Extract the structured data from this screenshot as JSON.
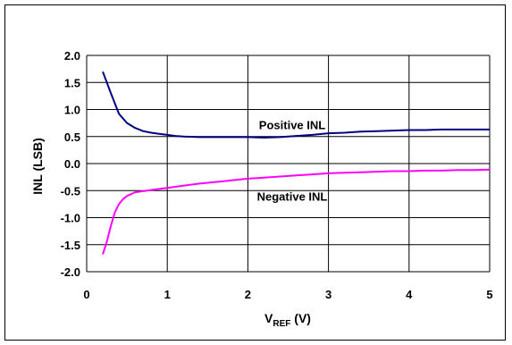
{
  "chart_data": {
    "type": "line",
    "title": "",
    "xlabel_main": "V",
    "xlabel_sub": "REF",
    "xlabel_unit": " (V)",
    "ylabel": "INL (LSB)",
    "xlim": [
      0,
      5
    ],
    "ylim": [
      -2.0,
      2.0
    ],
    "x_ticks": [
      "0",
      "1",
      "2",
      "3",
      "4",
      "5"
    ],
    "y_ticks": [
      "2.0",
      "1.5",
      "1.0",
      "0.5",
      "0.0",
      "-0.5",
      "-1.0",
      "-1.5",
      "-2.0"
    ],
    "grid": true,
    "series": [
      {
        "name": "Positive INL",
        "color": "#000080",
        "x": [
          0.2,
          0.3,
          0.4,
          0.5,
          0.6,
          0.7,
          0.8,
          0.9,
          1.0,
          1.1,
          1.2,
          1.4,
          1.6,
          1.8,
          2.0,
          2.2,
          2.4,
          2.6,
          2.8,
          3.0,
          3.2,
          3.4,
          3.6,
          3.8,
          4.0,
          4.2,
          4.4,
          4.6,
          4.8,
          5.0
        ],
        "values": [
          1.7,
          1.3,
          0.92,
          0.75,
          0.66,
          0.6,
          0.57,
          0.55,
          0.53,
          0.51,
          0.5,
          0.49,
          0.49,
          0.49,
          0.49,
          0.48,
          0.49,
          0.51,
          0.53,
          0.56,
          0.57,
          0.59,
          0.6,
          0.61,
          0.62,
          0.62,
          0.63,
          0.63,
          0.63,
          0.63
        ]
      },
      {
        "name": "Negative INL",
        "color": "#ff00ff",
        "x": [
          0.2,
          0.25,
          0.3,
          0.35,
          0.4,
          0.45,
          0.5,
          0.6,
          0.7,
          0.8,
          0.9,
          1.0,
          1.2,
          1.4,
          1.6,
          1.8,
          2.0,
          2.2,
          2.4,
          2.6,
          2.8,
          3.0,
          3.2,
          3.4,
          3.6,
          3.8,
          4.0,
          4.2,
          4.4,
          4.6,
          4.8,
          5.0
        ],
        "values": [
          -1.68,
          -1.45,
          -1.15,
          -0.9,
          -0.75,
          -0.66,
          -0.6,
          -0.53,
          -0.51,
          -0.49,
          -0.47,
          -0.45,
          -0.41,
          -0.37,
          -0.34,
          -0.31,
          -0.28,
          -0.26,
          -0.24,
          -0.22,
          -0.2,
          -0.18,
          -0.17,
          -0.16,
          -0.15,
          -0.14,
          -0.14,
          -0.13,
          -0.13,
          -0.12,
          -0.12,
          -0.11
        ]
      }
    ],
    "annotations": [
      {
        "text": "Positive INL",
        "x": 2.55,
        "y": 0.72
      },
      {
        "text": "Negative INL",
        "x": 2.55,
        "y": -0.6
      }
    ]
  }
}
